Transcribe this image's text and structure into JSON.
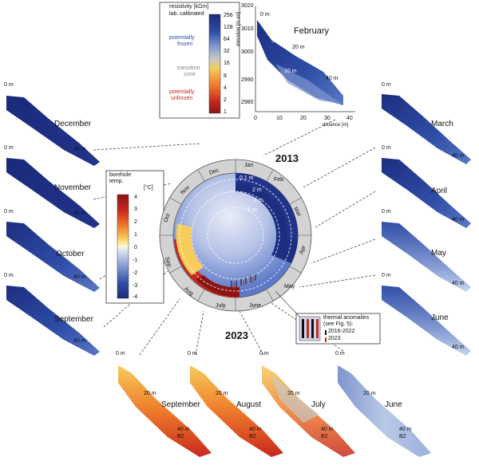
{
  "colors": {
    "frozen_dark": "#1a2a7a",
    "frozen_mid": "#2f4ea8",
    "frozen_light": "#7f96cf",
    "pale": "#b9c8e6",
    "transition": "#c8c8c8",
    "warm_yellow": "#f6cc5a",
    "warm_orange": "#ee7a2a",
    "warm_red": "#c8281e",
    "dark_red": "#8b1414",
    "ring": "#d3d3d3"
  },
  "legend": {
    "title": "resistivity [kΩm]",
    "subtitle": "lab. calibrated",
    "ticks": [
      "256",
      "128",
      "64",
      "32",
      "16",
      "8",
      "4",
      "2",
      "1"
    ],
    "frozen_label": [
      "potentially",
      "frozen"
    ],
    "transition_label": [
      "transition",
      "zone"
    ],
    "unfrozen_label": [
      "potentially",
      "unfrozen"
    ]
  },
  "inset": {
    "title": "February",
    "ylabel": "elevation [m asl]",
    "xlabel": "distance [m]",
    "yticks": [
      "3020",
      "3010",
      "3000",
      "2990",
      "2980"
    ],
    "xticks": [
      "0",
      "10",
      "20",
      "30",
      "40"
    ],
    "markers": [
      "0 m",
      "5 m",
      "10 m",
      "20 m",
      "40 m"
    ]
  },
  "borehole_legend": {
    "title": [
      "borehole",
      "temp."
    ],
    "unit": "[°C]",
    "ticks": [
      "4",
      "3",
      "2",
      "1",
      "0",
      "-1",
      "-2",
      "-3",
      "-4"
    ]
  },
  "clock": {
    "months": [
      "Jan",
      "Feb",
      "Mar",
      "Apr",
      "May",
      "June",
      "July",
      "Aug",
      "Sep",
      "Oct",
      "Nov",
      "Dec"
    ],
    "depths": [
      "0.1 m",
      "2 m",
      "3 m",
      "5 m"
    ],
    "year_top": "2013",
    "year_bottom": "2023"
  },
  "thermal": {
    "title": [
      "thermal anomalies",
      "(see Fig. 5):"
    ],
    "items": [
      "2016-2022",
      "2023"
    ]
  },
  "panels": {
    "left": [
      "December",
      "November",
      "October",
      "September"
    ],
    "right": [
      "March",
      "April",
      "May",
      "June"
    ],
    "bottom": [
      "September",
      "August",
      "July",
      "June"
    ]
  },
  "distance_labels": {
    "d0": "0 m",
    "d5": "5 m",
    "d10": "10 m",
    "d20": "20 m",
    "d40": "40 m",
    "b2": "B2"
  }
}
